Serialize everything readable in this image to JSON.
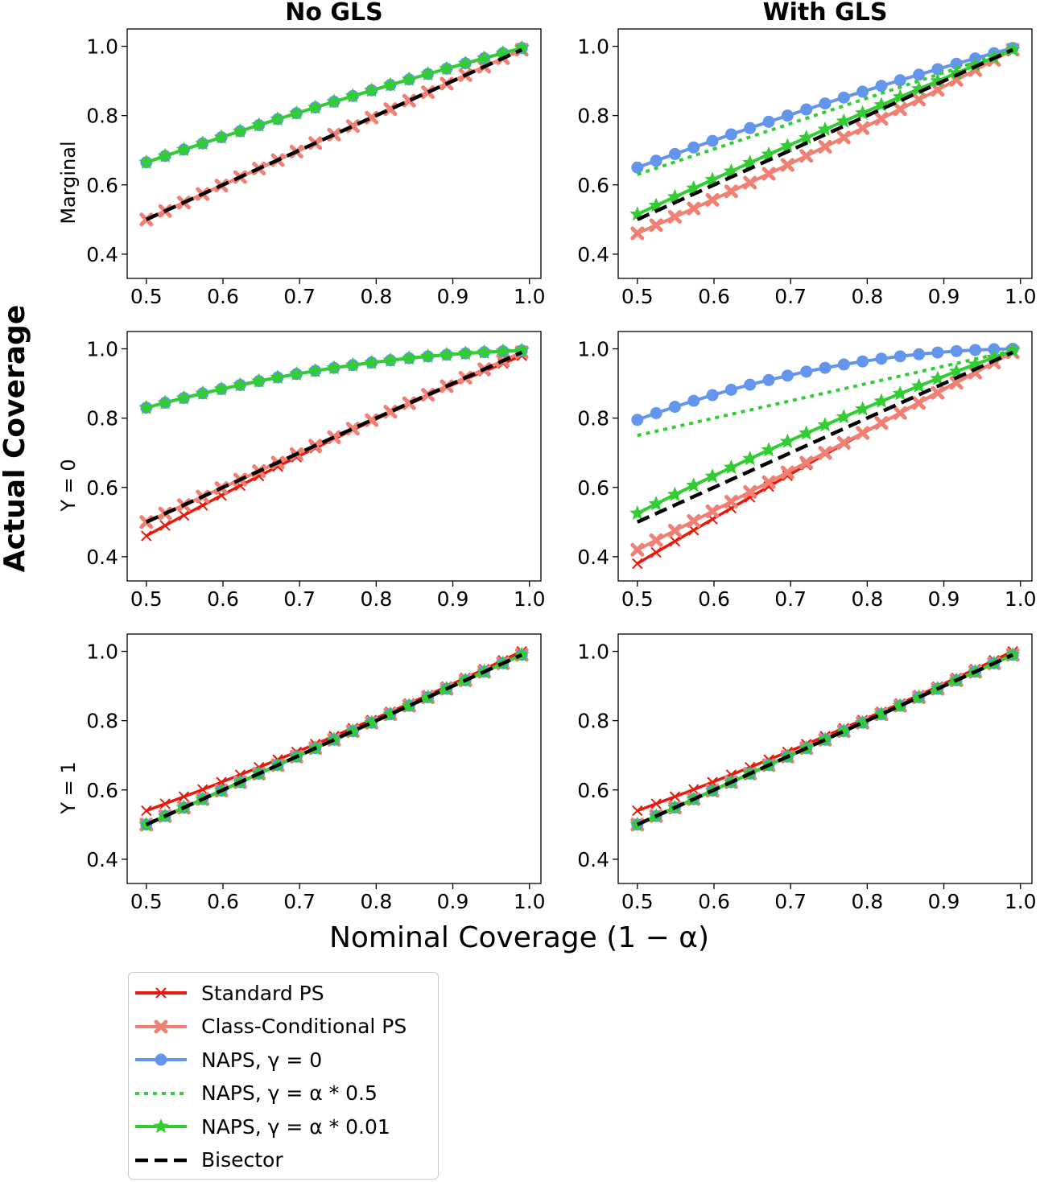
{
  "figure": {
    "y_axis_label": "Actual Coverage",
    "x_axis_label": "Nominal Coverage (1 − α)"
  },
  "legend": {
    "items": [
      {
        "label": "Standard PS",
        "color": "#e8190c",
        "style": "x"
      },
      {
        "label": "Class-Conditional PS",
        "color": "#f07f74",
        "style": "X"
      },
      {
        "label": "NAPS, γ = 0",
        "color": "#6495ed",
        "style": "circle"
      },
      {
        "label": "NAPS, γ = α * 0.5",
        "color": "#32cd32",
        "style": "dotted"
      },
      {
        "label": "NAPS, γ = α * 0.01",
        "color": "#32cd32",
        "style": "star"
      },
      {
        "label": "Bisector",
        "color": "#000000",
        "style": "dashed"
      }
    ]
  },
  "chart_data": [
    {
      "type": "line",
      "title": "No GLS",
      "row_label": "Marginal",
      "xlim": [
        0.475,
        1.015
      ],
      "ylim": [
        0.33,
        1.05
      ],
      "xticks": [
        "0.5",
        "0.6",
        "0.7",
        "0.8",
        "0.9",
        "1.0"
      ],
      "yticks": [
        "0.4",
        "0.6",
        "0.8",
        "1.0"
      ],
      "series": [
        {
          "name": "Standard PS",
          "start": 0.5,
          "mid": 0.745,
          "end": 0.99
        },
        {
          "name": "Class-Conditional PS",
          "start": 0.5,
          "mid": 0.745,
          "end": 0.99
        },
        {
          "name": "NAPS, γ = 0",
          "start": 0.665,
          "mid": 0.84,
          "end": 0.995
        },
        {
          "name": "NAPS, γ = α * 0.01",
          "start": 0.665,
          "mid": 0.84,
          "end": 0.995
        },
        {
          "name": "Bisector",
          "start": 0.5,
          "mid": 0.745,
          "end": 0.99
        }
      ]
    },
    {
      "type": "line",
      "title": "With GLS",
      "row_label": "",
      "xlim": [
        0.475,
        1.015
      ],
      "ylim": [
        0.33,
        1.05
      ],
      "xticks": [
        "0.5",
        "0.6",
        "0.7",
        "0.8",
        "0.9",
        "1.0"
      ],
      "yticks": [
        "0.4",
        "0.6",
        "0.8",
        "1.0"
      ],
      "series": [
        {
          "name": "Standard PS",
          "start": 0.46,
          "mid": 0.71,
          "end": 0.99
        },
        {
          "name": "Class-Conditional PS",
          "start": 0.46,
          "mid": 0.71,
          "end": 0.99
        },
        {
          "name": "NAPS, γ = 0",
          "start": 0.65,
          "mid": 0.835,
          "end": 0.995
        },
        {
          "name": "NAPS, γ = α * 0.5",
          "start": 0.63,
          "mid": 0.81,
          "end": 0.99
        },
        {
          "name": "NAPS, γ = α * 0.01",
          "start": 0.515,
          "mid": 0.76,
          "end": 0.99
        },
        {
          "name": "Bisector",
          "start": 0.5,
          "mid": 0.745,
          "end": 0.99
        }
      ]
    },
    {
      "type": "line",
      "title": "",
      "row_label": "Y = 0",
      "xlim": [
        0.475,
        1.015
      ],
      "ylim": [
        0.33,
        1.05
      ],
      "xticks": [
        "0.5",
        "0.6",
        "0.7",
        "0.8",
        "0.9",
        "1.0"
      ],
      "yticks": [
        "0.4",
        "0.6",
        "0.8",
        "1.0"
      ],
      "series": [
        {
          "name": "Standard PS",
          "start": 0.46,
          "mid": 0.74,
          "end": 0.98
        },
        {
          "name": "Class-Conditional PS",
          "start": 0.5,
          "mid": 0.745,
          "end": 0.99
        },
        {
          "name": "NAPS, γ = 0",
          "start": 0.83,
          "mid": 0.945,
          "end": 0.995
        },
        {
          "name": "NAPS, γ = α * 0.01",
          "start": 0.83,
          "mid": 0.945,
          "end": 0.995
        },
        {
          "name": "Bisector",
          "start": 0.5,
          "mid": 0.745,
          "end": 0.99
        }
      ]
    },
    {
      "type": "line",
      "title": "",
      "row_label": "",
      "xlim": [
        0.475,
        1.015
      ],
      "ylim": [
        0.33,
        1.05
      ],
      "xticks": [
        "0.5",
        "0.6",
        "0.7",
        "0.8",
        "0.9",
        "1.0"
      ],
      "yticks": [
        "0.4",
        "0.6",
        "0.8",
        "1.0"
      ],
      "series": [
        {
          "name": "Standard PS",
          "start": 0.38,
          "mid": 0.695,
          "end": 0.99
        },
        {
          "name": "Class-Conditional PS",
          "start": 0.42,
          "mid": 0.7,
          "end": 0.99
        },
        {
          "name": "NAPS, γ = 0",
          "start": 0.795,
          "mid": 0.945,
          "end": 1.0
        },
        {
          "name": "NAPS, γ = α * 0.5",
          "start": 0.75,
          "mid": 0.88,
          "end": 0.995
        },
        {
          "name": "NAPS, γ = α * 0.01",
          "start": 0.525,
          "mid": 0.78,
          "end": 0.995
        },
        {
          "name": "Bisector",
          "start": 0.5,
          "mid": 0.745,
          "end": 0.99
        }
      ]
    },
    {
      "type": "line",
      "title": "",
      "row_label": "Y = 1",
      "xlim": [
        0.475,
        1.015
      ],
      "ylim": [
        0.33,
        1.05
      ],
      "xticks": [
        "0.5",
        "0.6",
        "0.7",
        "0.8",
        "0.9",
        "1.0"
      ],
      "yticks": [
        "0.4",
        "0.6",
        "0.8",
        "1.0"
      ],
      "series": [
        {
          "name": "Standard PS",
          "start": 0.54,
          "mid": 0.755,
          "end": 1.0
        },
        {
          "name": "Class-Conditional PS",
          "start": 0.5,
          "mid": 0.745,
          "end": 0.99
        },
        {
          "name": "NAPS, γ = 0",
          "start": 0.5,
          "mid": 0.745,
          "end": 0.99
        },
        {
          "name": "NAPS, γ = α * 0.01",
          "start": 0.5,
          "mid": 0.745,
          "end": 0.99
        },
        {
          "name": "Bisector",
          "start": 0.5,
          "mid": 0.745,
          "end": 0.99
        }
      ]
    },
    {
      "type": "line",
      "title": "",
      "row_label": "",
      "xlim": [
        0.475,
        1.015
      ],
      "ylim": [
        0.33,
        1.05
      ],
      "xticks": [
        "0.5",
        "0.6",
        "0.7",
        "0.8",
        "0.9",
        "1.0"
      ],
      "yticks": [
        "0.4",
        "0.6",
        "0.8",
        "1.0"
      ],
      "series": [
        {
          "name": "Standard PS",
          "start": 0.54,
          "mid": 0.755,
          "end": 1.0
        },
        {
          "name": "Class-Conditional PS",
          "start": 0.5,
          "mid": 0.745,
          "end": 0.99
        },
        {
          "name": "NAPS, γ = 0",
          "start": 0.5,
          "mid": 0.745,
          "end": 0.99
        },
        {
          "name": "NAPS, γ = α * 0.01",
          "start": 0.5,
          "mid": 0.745,
          "end": 0.99
        },
        {
          "name": "Bisector",
          "start": 0.5,
          "mid": 0.745,
          "end": 0.99
        }
      ]
    }
  ]
}
